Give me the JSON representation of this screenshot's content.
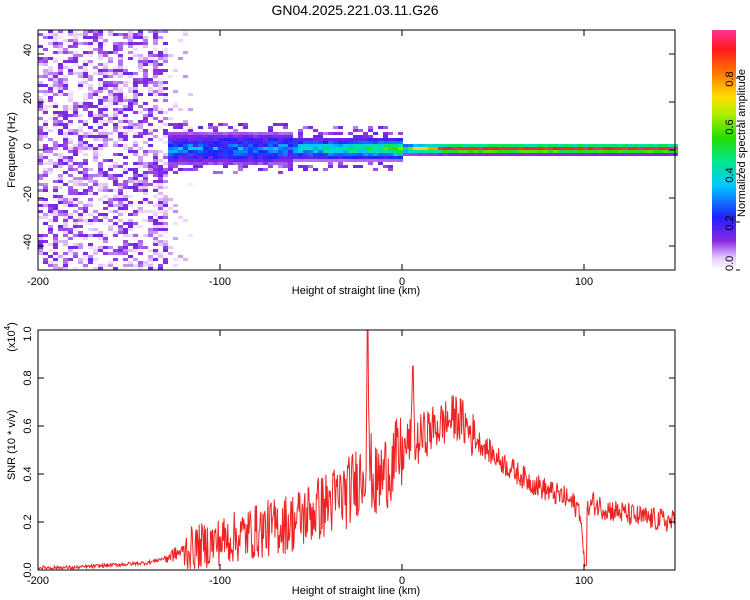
{
  "title": "GN04.2025.221.03.11.G26",
  "spectrogram": {
    "xlabel": "Height of straight line (km)",
    "ylabel": "Frequency (Hz)",
    "xticks": [
      "-200",
      "-100",
      "0",
      "100"
    ],
    "yticks": [
      "40",
      "20",
      "0",
      "-20",
      "-40"
    ],
    "colorbar_label": "Normalized spectral amplitude",
    "colorbar_ticks": [
      "0.0",
      "0.2",
      "0.4",
      "0.6",
      "0.8"
    ]
  },
  "snr_panel": {
    "xlabel": "Height of straight line (km)",
    "ylabel": "SNR (10 * v/v)",
    "scale_label": "(x10",
    "scale_exp": "4",
    "scale_close": ")",
    "xticks": [
      "-200",
      "-100",
      "0",
      "100"
    ],
    "yticks": [
      "0.0",
      "0.2",
      "0.4",
      "0.6",
      "0.8",
      "1.0"
    ]
  },
  "chart_data": [
    {
      "type": "heatmap",
      "xlabel": "Height of straight line (km)",
      "ylabel": "Frequency (Hz)",
      "xlim": [
        -200,
        150
      ],
      "ylim": [
        -50,
        50
      ],
      "xticks": [
        -200,
        -100,
        0,
        100
      ],
      "yticks": [
        40,
        20,
        0,
        -20,
        -40
      ],
      "colorbar": {
        "label": "Normalized spectral amplitude",
        "range": [
          0,
          1
        ],
        "ticks": [
          0.0,
          0.2,
          0.4,
          0.6,
          0.8
        ],
        "colormap": "rainbow (white → violet → blue → cyan → green → yellow → red → magenta)"
      },
      "regions": [
        {
          "x_range": [
            -200,
            -128
          ],
          "freq_range": [
            -50,
            50
          ],
          "amplitude": [
            0.0,
            0.15
          ],
          "description": "broadband noise"
        },
        {
          "x_range": [
            -128,
            -115
          ],
          "freq_range": [
            -50,
            50
          ],
          "amplitude": [
            0.0,
            0.08
          ],
          "description": "sparse noise"
        },
        {
          "x_range": [
            -128,
            -60
          ],
          "freq_range": [
            -8,
            8
          ],
          "amplitude": [
            0.1,
            0.45
          ]
        },
        {
          "x_range": [
            -60,
            0
          ],
          "freq_range": [
            -5,
            5
          ],
          "amplitude": [
            0.1,
            0.6
          ]
        },
        {
          "x_range": [
            0,
            150
          ],
          "freq_range": [
            -2,
            3
          ],
          "amplitude": [
            0.2,
            1.0
          ],
          "peak_frequency": 0.5
        }
      ]
    },
    {
      "type": "line",
      "xlabel": "Height of straight line (km)",
      "ylabel": "SNR (10 * v/v)",
      "y_multiplier": 10000,
      "xlim": [
        -200,
        150
      ],
      "ylim": [
        0,
        1.0
      ],
      "xticks": [
        -200,
        -100,
        0,
        100
      ],
      "yticks": [
        0.0,
        0.2,
        0.4,
        0.6,
        0.8,
        1.0
      ],
      "color": "#ee2222",
      "x": [
        -200,
        -180,
        -160,
        -140,
        -130,
        -120,
        -110,
        -100,
        -90,
        -80,
        -70,
        -60,
        -50,
        -40,
        -30,
        -20,
        -19,
        -18,
        -15,
        -10,
        -5,
        0,
        5,
        6,
        7,
        10,
        15,
        20,
        25,
        30,
        35,
        40,
        50,
        60,
        70,
        80,
        90,
        98,
        100,
        102,
        105,
        110,
        120,
        130,
        140,
        150
      ],
      "y": [
        0.01,
        0.01,
        0.02,
        0.03,
        0.05,
        0.08,
        0.1,
        0.12,
        0.14,
        0.16,
        0.18,
        0.2,
        0.24,
        0.28,
        0.32,
        0.42,
        1.0,
        0.45,
        0.35,
        0.4,
        0.45,
        0.48,
        0.55,
        0.85,
        0.5,
        0.55,
        0.58,
        0.6,
        0.62,
        0.64,
        0.6,
        0.55,
        0.48,
        0.42,
        0.37,
        0.33,
        0.3,
        0.25,
        0.02,
        0.25,
        0.28,
        0.26,
        0.24,
        0.22,
        0.21,
        0.2
      ],
      "spikes": [
        {
          "x": -19,
          "y": 1.0
        },
        {
          "x": 6,
          "y": 0.85
        },
        {
          "x": 101,
          "y": 0.02
        }
      ]
    }
  ]
}
